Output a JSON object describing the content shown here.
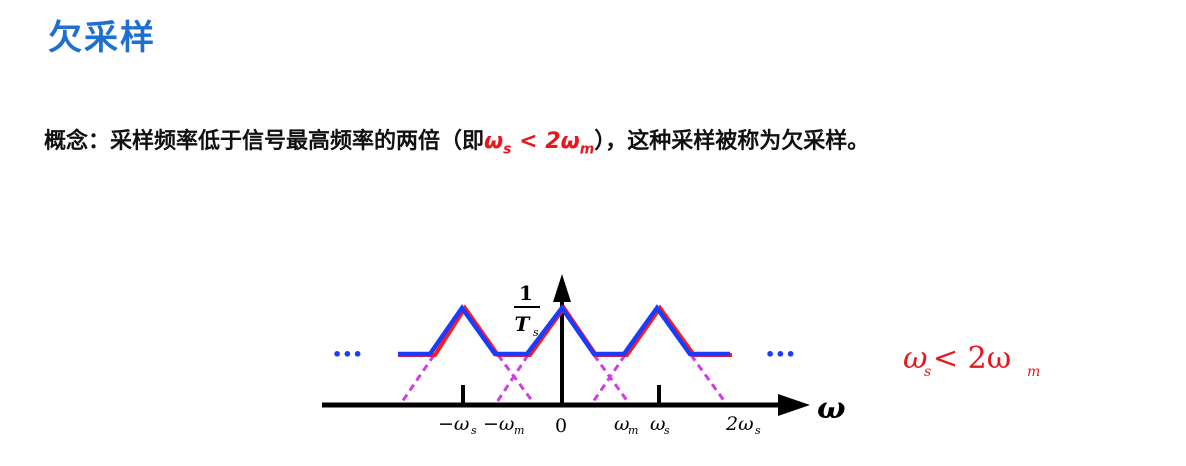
{
  "slide": {
    "title": "欠采样",
    "concept_label": "概念：",
    "concept_text": "采样频率低于信号最高频率的两倍（即",
    "condition_omega_s": "ω",
    "condition_s_sub": "s",
    "condition_lt": " < 2",
    "condition_omega_m": "ω",
    "condition_m_sub": "m",
    "concept_tail": "），这种采样被称为欠采样。"
  },
  "figure": {
    "y_axis_label_num": "1",
    "y_axis_label_den": "T",
    "y_axis_label_den_sub": "s",
    "x_axis_label": "ω",
    "ticks": {
      "neg_ws": "−ω",
      "neg_ws_sub": "s",
      "neg_wm": "−ω",
      "neg_wm_sub": "m",
      "zero": "0",
      "wm": "ω",
      "wm_sub": "m",
      "ws": "ω",
      "ws_sub": "s",
      "two_ws": "2ω",
      "two_ws_sub": "s"
    },
    "ellipsis_left": "•••",
    "ellipsis_right": "•••",
    "condition_label": "ω",
    "condition_label_sub1": "s",
    "condition_label_mid": " < 2ω",
    "condition_label_sub2": "m",
    "colors": {
      "axis": "#000000",
      "spectrum_red": "#ff1a1a",
      "spectrum_blue": "#1a3cff",
      "aliasing_dashed": "#d23ce6",
      "condition_text": "#e8181d"
    }
  }
}
